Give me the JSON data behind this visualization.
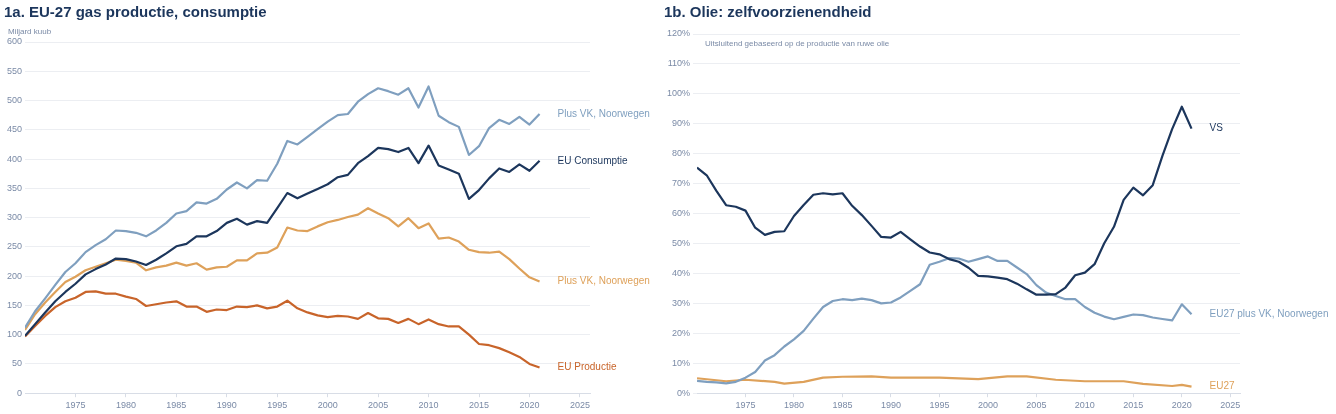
{
  "chart_data": [
    {
      "type": "line",
      "title": "1a. EU-27 gas productie, consumptie",
      "ylabel": "Miljard kuub",
      "grid": "y",
      "x": [
        1970,
        1971,
        1972,
        1973,
        1974,
        1975,
        1976,
        1977,
        1978,
        1979,
        1980,
        1981,
        1982,
        1983,
        1984,
        1985,
        1986,
        1987,
        1988,
        1989,
        1990,
        1991,
        1992,
        1993,
        1994,
        1995,
        1996,
        1997,
        1998,
        1999,
        2000,
        2001,
        2002,
        2003,
        2004,
        2005,
        2006,
        2007,
        2008,
        2009,
        2010,
        2011,
        2012,
        2013,
        2014,
        2015,
        2016,
        2017,
        2018,
        2019,
        2020,
        2021
      ],
      "xlim": [
        1970,
        2026
      ],
      "xticks": [
        1975,
        1980,
        1985,
        1990,
        1995,
        2000,
        2005,
        2010,
        2015,
        2020,
        2025
      ],
      "ylim": [
        0,
        600
      ],
      "yticks": [
        0,
        50,
        100,
        150,
        200,
        250,
        300,
        350,
        400,
        450,
        500,
        550,
        600
      ],
      "series": [
        {
          "name": "Plus VK, Noorwegen",
          "color": "#7f9fbf",
          "values": [
            112,
            140,
            162,
            185,
            207,
            222,
            241,
            253,
            263,
            278,
            277,
            274,
            268,
            278,
            291,
            307,
            311,
            326,
            324,
            332,
            348,
            360,
            350,
            364,
            363,
            392,
            431,
            425,
            438,
            451,
            464,
            475,
            477,
            498,
            511,
            521,
            516,
            510,
            521,
            488,
            524,
            474,
            463,
            455,
            407,
            422,
            453,
            467,
            460,
            472,
            459,
            477
          ]
        },
        {
          "name": "EU Consumptie",
          "color": "#1c365c",
          "values": [
            98,
            118,
            138,
            157,
            173,
            187,
            203,
            212,
            220,
            230,
            229,
            225,
            219,
            228,
            239,
            251,
            255,
            268,
            268,
            277,
            291,
            298,
            288,
            294,
            291,
            316,
            342,
            333,
            341,
            349,
            357,
            369,
            373,
            393,
            405,
            419,
            417,
            412,
            419,
            393,
            423,
            389,
            382,
            375,
            332,
            347,
            367,
            384,
            378,
            391,
            380,
            397
          ]
        },
        {
          "name": "Plus VK, Noorwegen",
          "color": "#dea15a",
          "values": [
            108,
            135,
            155,
            173,
            190,
            199,
            210,
            216,
            222,
            228,
            226,
            223,
            210,
            215,
            218,
            223,
            218,
            222,
            211,
            215,
            216,
            227,
            227,
            239,
            240,
            249,
            283,
            278,
            277,
            285,
            292,
            296,
            301,
            305,
            316,
            307,
            299,
            285,
            299,
            282,
            290,
            264,
            266,
            259,
            245,
            241,
            240,
            242,
            229,
            213,
            198,
            191
          ]
        },
        {
          "name": "EU Productie",
          "color": "#c8642a",
          "values": [
            97,
            115,
            132,
            147,
            157,
            163,
            173,
            174,
            170,
            170,
            165,
            161,
            149,
            152,
            155,
            157,
            148,
            148,
            139,
            143,
            142,
            148,
            147,
            150,
            145,
            148,
            158,
            145,
            138,
            133,
            130,
            132,
            131,
            127,
            137,
            128,
            127,
            120,
            127,
            118,
            126,
            118,
            114,
            114,
            100,
            84,
            82,
            77,
            70,
            62,
            50,
            44
          ]
        }
      ]
    },
    {
      "type": "line",
      "title": "1b. Olie: zelfvoorzienendheid",
      "grid": "y",
      "annotations": [
        "Uitsluitend gebaseerd op de productie van ruwe olie"
      ],
      "x": [
        1970,
        1971,
        1972,
        1973,
        1974,
        1975,
        1976,
        1977,
        1978,
        1979,
        1980,
        1981,
        1982,
        1983,
        1984,
        1985,
        1986,
        1987,
        1988,
        1989,
        1990,
        1991,
        1992,
        1993,
        1994,
        1995,
        1996,
        1997,
        1998,
        1999,
        2000,
        2001,
        2002,
        2003,
        2004,
        2005,
        2006,
        2007,
        2008,
        2009,
        2010,
        2011,
        2012,
        2013,
        2014,
        2015,
        2016,
        2017,
        2018,
        2019,
        2020,
        2021
      ],
      "xlim": [
        1970,
        2026
      ],
      "xticks": [
        1975,
        1980,
        1985,
        1990,
        1995,
        2000,
        2005,
        2010,
        2015,
        2020,
        2025
      ],
      "ylim": [
        0,
        120
      ],
      "yticks": [
        {
          "value": 0,
          "label": "0%"
        },
        {
          "value": 10,
          "label": "10%"
        },
        {
          "value": 20,
          "label": "20%"
        },
        {
          "value": 30,
          "label": "30%"
        },
        {
          "value": 40,
          "label": "40%"
        },
        {
          "value": 50,
          "label": "50%"
        },
        {
          "value": 60,
          "label": "60%"
        },
        {
          "value": 70,
          "label": "70%"
        },
        {
          "value": 80,
          "label": "80%"
        },
        {
          "value": 90,
          "label": "90%"
        },
        {
          "value": 100,
          "label": "100%"
        },
        {
          "value": 110,
          "label": "110%"
        },
        {
          "value": 120,
          "label": "120%"
        }
      ],
      "series": [
        {
          "name": "VS",
          "color": "#1c365c",
          "values": [
            75.4,
            72.8,
            67.6,
            62.8,
            62.3,
            61,
            55.3,
            52.9,
            53.9,
            54.1,
            59.2,
            62.9,
            66.3,
            66.8,
            66.4,
            66.8,
            62.6,
            59.5,
            55.9,
            52.2,
            52,
            53.9,
            51.4,
            49,
            47,
            46.4,
            44.8,
            43.9,
            41.9,
            39.2,
            39,
            38.6,
            38.1,
            36.6,
            34.7,
            32.9,
            32.9,
            33.1,
            35.3,
            39.4,
            40.3,
            43.1,
            50.1,
            55.6,
            64.6,
            68.7,
            66.1,
            69.5,
            79.3,
            88.2,
            95.7,
            88.4
          ]
        },
        {
          "name": "EU27 plus VK, Noorwegen",
          "color": "#7f9fbf",
          "values": [
            4.1,
            3.8,
            3.6,
            3.3,
            3.8,
            5.2,
            7.1,
            10.9,
            12.7,
            15.6,
            18,
            20.8,
            24.9,
            28.8,
            30.8,
            31.4,
            31.1,
            31.6,
            31.1,
            30,
            30.3,
            32,
            34.2,
            36.4,
            42.9,
            43.9,
            45.1,
            45,
            43.9,
            44.8,
            45.7,
            44.2,
            44.2,
            42,
            39.8,
            36.1,
            33.6,
            32.5,
            31.4,
            31.4,
            28.8,
            26.9,
            25.6,
            24.7,
            25.5,
            26.3,
            26.1,
            25.3,
            24.8,
            24.3,
            29.7,
            26.4
          ]
        },
        {
          "name": "EU27",
          "color": "#dea15a",
          "x": [
            1970,
            1973,
            1975,
            1978,
            1979,
            1981,
            1983,
            1985,
            1988,
            1990,
            1995,
            1999,
            2002,
            2004,
            2007,
            2010,
            2014,
            2016,
            2019,
            2020,
            2021
          ],
          "values": [
            5,
            4,
            4.5,
            3.8,
            3.2,
            3.8,
            5.2,
            5.5,
            5.6,
            5.2,
            5.2,
            4.7,
            5.6,
            5.6,
            4.5,
            4,
            4,
            3.1,
            2.4,
            2.8,
            2.2
          ]
        }
      ]
    }
  ]
}
